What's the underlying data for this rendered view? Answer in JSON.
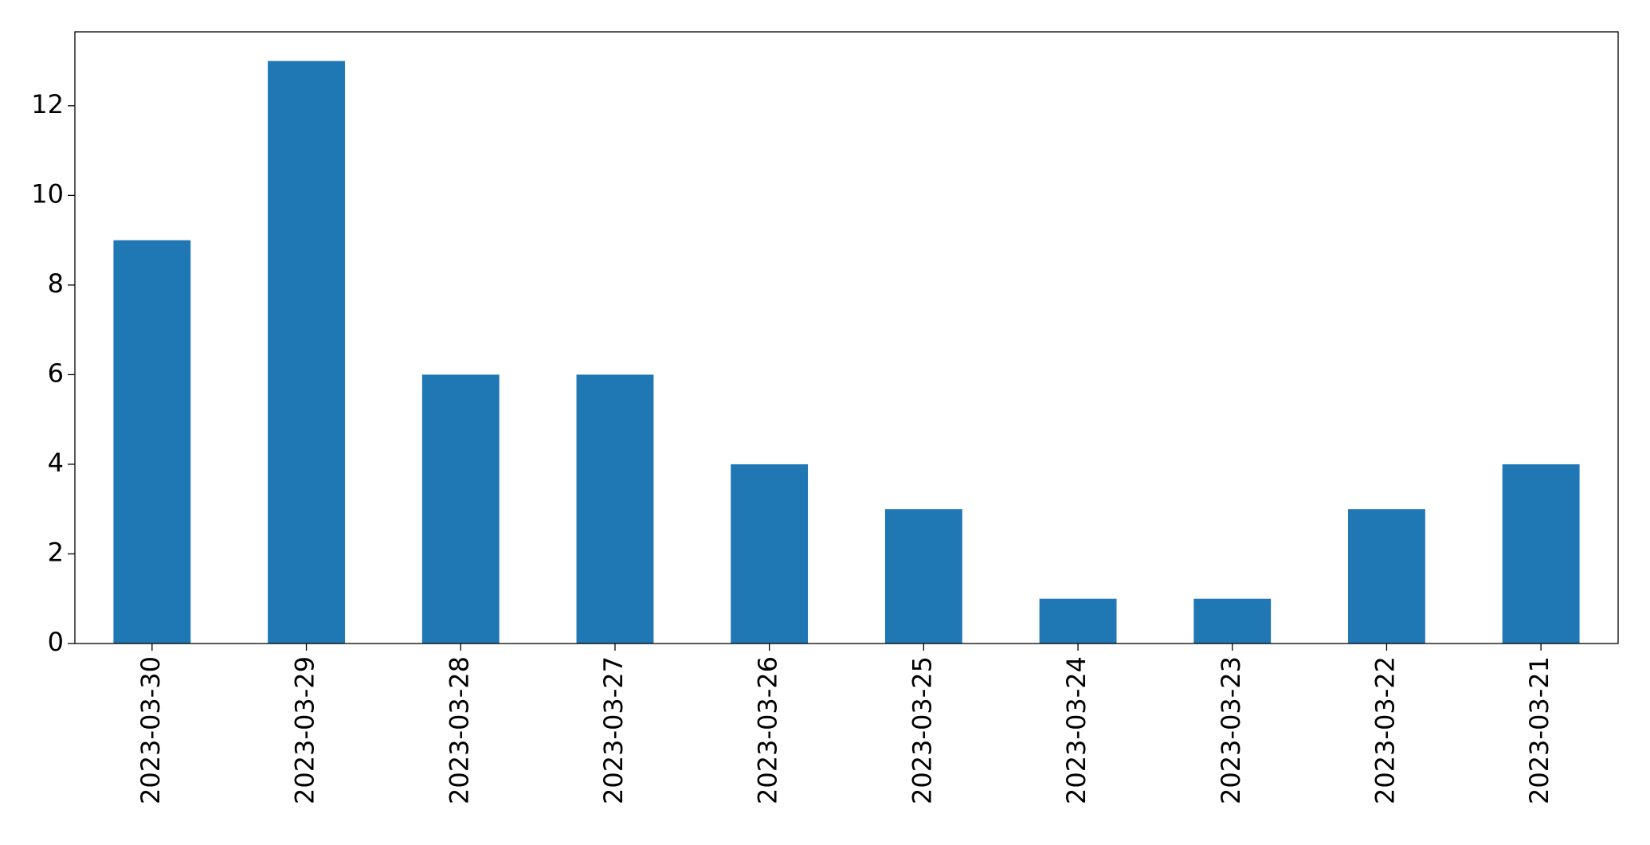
{
  "chart_data": {
    "type": "bar",
    "categories": [
      "2023-03-30",
      "2023-03-29",
      "2023-03-28",
      "2023-03-27",
      "2023-03-26",
      "2023-03-25",
      "2023-03-24",
      "2023-03-23",
      "2023-03-22",
      "2023-03-21"
    ],
    "values": [
      9,
      13,
      6,
      6,
      4,
      3,
      1,
      1,
      3,
      4
    ],
    "color": "#1f77b4",
    "ylim": [
      0,
      13.65
    ],
    "yticks": [
      0,
      2,
      4,
      6,
      8,
      10,
      12
    ],
    "grid": false
  }
}
